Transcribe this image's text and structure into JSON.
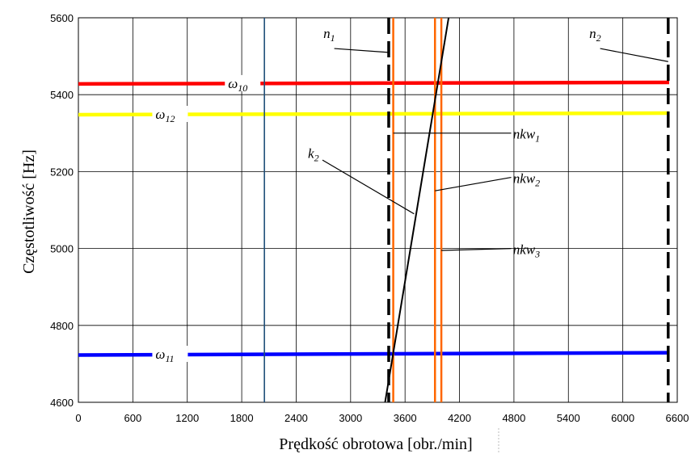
{
  "chart_data": {
    "type": "line",
    "xlabel": "Prędkość obrotowa [obr./min]",
    "ylabel": "Częstotliwość [Hz]",
    "xlim": [
      0,
      6600
    ],
    "ylim": [
      4600,
      5600
    ],
    "xticks": [
      0,
      600,
      1200,
      1800,
      2400,
      3000,
      3600,
      4200,
      4800,
      5400,
      6000,
      6600
    ],
    "yticks": [
      4600,
      4800,
      5000,
      5200,
      5400,
      5600
    ],
    "grid": true,
    "horizontal_lines": [
      {
        "name": "ω10",
        "label_main": "ω",
        "label_sub": "10",
        "color": "#ff0000",
        "y": [
          5428,
          5432
        ],
        "label_x": 1650
      },
      {
        "name": "ω12",
        "label_main": "ω",
        "label_sub": "12",
        "color": "#ffff00",
        "y": [
          5348,
          5352
        ],
        "label_x": 850
      },
      {
        "name": "ω11",
        "label_main": "ω",
        "label_sub": "11",
        "color": "#0000ff",
        "y": [
          4723,
          4729
        ],
        "label_x": 850
      }
    ],
    "vertical_lines": [
      {
        "name": "n1",
        "x": 3420,
        "style": "dashed",
        "color": "#000000"
      },
      {
        "name": "n2",
        "x": 6500,
        "style": "dashed",
        "color": "#000000"
      },
      {
        "name": "nkw1",
        "x": 3470,
        "style": "solid",
        "color": "#ff6600"
      },
      {
        "name": "nkw2",
        "x": 3930,
        "style": "solid",
        "color": "#ff6600"
      },
      {
        "name": "nkw3",
        "x": 4000,
        "style": "solid",
        "color": "#ff6600"
      },
      {
        "name": "reference",
        "x": 2050,
        "style": "solid",
        "color": "#1f4e79"
      }
    ],
    "sloped_line": {
      "name": "k2",
      "points": [
        [
          3380,
          4600
        ],
        [
          4080,
          5600
        ]
      ],
      "color": "#000000"
    },
    "annotations": [
      {
        "id": "n1",
        "main": "n",
        "sub": "1",
        "text_x": 2700,
        "text_y": 5548,
        "leader_from": [
          2820,
          5520
        ],
        "leader_to": [
          3420,
          5510
        ]
      },
      {
        "id": "n2",
        "main": "n",
        "sub": "2",
        "text_x": 5630,
        "text_y": 5548,
        "leader_from": [
          5750,
          5520
        ],
        "leader_to": [
          6500,
          5486
        ]
      },
      {
        "id": "nkw1",
        "main": "nkw",
        "sub": "1",
        "text_x": 4790,
        "text_y": 5286,
        "leader_from": [
          4770,
          5300
        ],
        "leader_to": [
          3470,
          5300
        ]
      },
      {
        "id": "nkw2",
        "main": "nkw",
        "sub": "2",
        "text_x": 4790,
        "text_y": 5170,
        "leader_from": [
          4770,
          5185
        ],
        "leader_to": [
          3930,
          5150
        ]
      },
      {
        "id": "nkw3",
        "main": "nkw",
        "sub": "3",
        "text_x": 4790,
        "text_y": 4985,
        "leader_from": [
          4770,
          5000
        ],
        "leader_to": [
          4000,
          4995
        ]
      },
      {
        "id": "k2",
        "main": "k",
        "sub": "2",
        "text_x": 2530,
        "text_y": 5235,
        "leader_from": [
          2690,
          5230
        ],
        "leader_to": [
          3700,
          5090
        ]
      }
    ]
  }
}
